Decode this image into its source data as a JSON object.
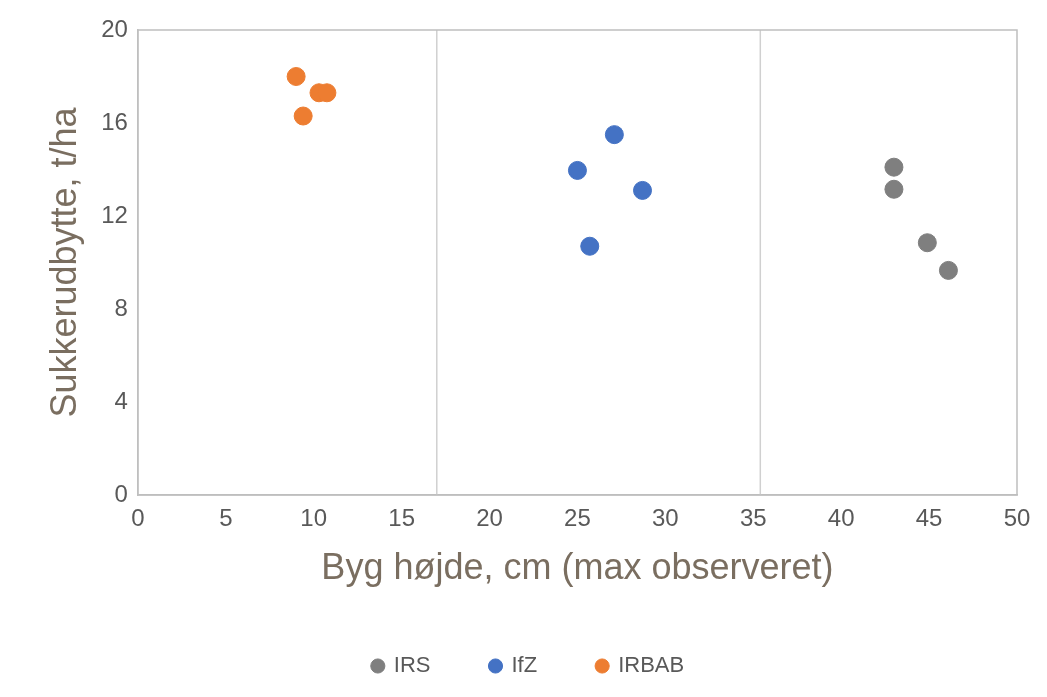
{
  "chart_data": {
    "type": "scatter",
    "xlabel": "Byg højde, cm (max observeret)",
    "ylabel": "Sukkerudbytte, t/ha",
    "xlim": [
      0,
      50
    ],
    "xticks": [
      0,
      5,
      10,
      15,
      20,
      25,
      30,
      35,
      40,
      45,
      50
    ],
    "ylim": [
      0,
      20
    ],
    "yticks": [
      0,
      4,
      8,
      12,
      16,
      20
    ],
    "grid": false,
    "legend": "bottom",
    "marker": "circle",
    "ref_lines": [
      {
        "axis": "x",
        "value": 17,
        "label": null,
        "color": "#d0d0d0"
      },
      {
        "axis": "x",
        "value": 35.4,
        "label": null,
        "color": "#d0d0d0"
      }
    ],
    "series": [
      {
        "name": "IRS",
        "color": "#7f7f7f",
        "x": [
          43.0,
          43.0,
          44.9,
          46.1
        ],
        "values": [
          14.1,
          13.15,
          10.85,
          9.66
        ]
      },
      {
        "name": "IfZ",
        "color": "#4472c4",
        "x": [
          25.0,
          27.1,
          28.7,
          25.7
        ],
        "values": [
          13.96,
          15.5,
          13.1,
          10.7
        ]
      },
      {
        "name": "IRBAB",
        "color": "#ed7d31",
        "x": [
          9.0,
          10.3,
          10.75,
          9.4
        ],
        "values": [
          18.0,
          17.3,
          17.3,
          16.3
        ]
      }
    ]
  }
}
